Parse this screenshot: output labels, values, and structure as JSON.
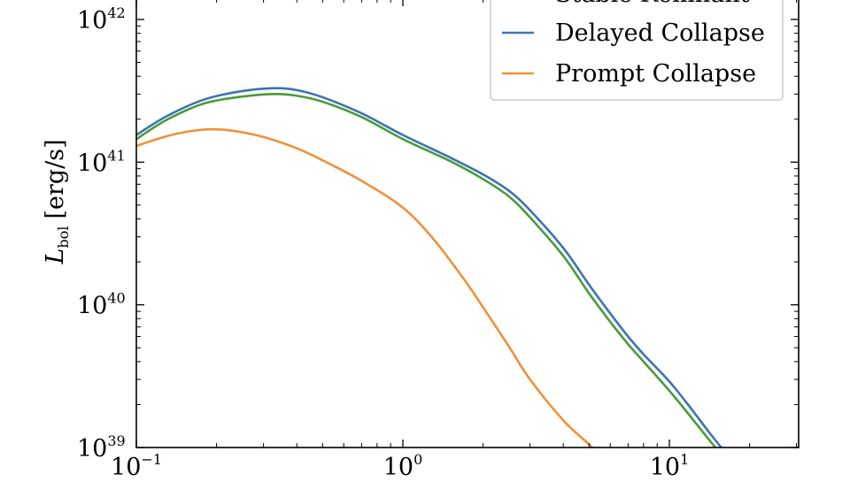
{
  "chart_data": {
    "type": "line",
    "xscale": "log",
    "yscale": "log",
    "xlim": [
      0.1,
      30
    ],
    "ylim": [
      1e+39,
      1e+42
    ],
    "ylabel": {
      "main": "L",
      "sub": "bol",
      "unit": "[erg/s]"
    },
    "xlabel": "",
    "x_ticks": [
      {
        "value": 0.1,
        "base": "10",
        "exp": "−1"
      },
      {
        "value": 1,
        "base": "10",
        "exp": "0"
      },
      {
        "value": 10,
        "base": "10",
        "exp": "1"
      }
    ],
    "y_ticks": [
      {
        "value": 1e+39,
        "base": "10",
        "exp": "39"
      },
      {
        "value": 1e+40,
        "base": "10",
        "exp": "40"
      },
      {
        "value": 1e+41,
        "base": "10",
        "exp": "41"
      },
      {
        "value": 1e+42,
        "base": "10",
        "exp": "42"
      }
    ],
    "legend": {
      "placement": "top-right",
      "partial_entry": "Stable Remnant",
      "entries": [
        {
          "label": "Delayed Collapse",
          "color": "#3d73b3"
        },
        {
          "label": "Prompt Collapse",
          "color": "#f0913a"
        }
      ]
    },
    "series": [
      {
        "name": "Delayed Collapse",
        "color": "#3d73b3",
        "points": [
          [
            0.1,
            1.55e+41
          ],
          [
            0.13,
            2.1e+41
          ],
          [
            0.18,
            2.75e+41
          ],
          [
            0.25,
            3.15e+41
          ],
          [
            0.33,
            3.3e+41
          ],
          [
            0.4,
            3.2e+41
          ],
          [
            0.5,
            2.85e+41
          ],
          [
            0.7,
            2.2e+41
          ],
          [
            1.0,
            1.55e+41
          ],
          [
            1.5,
            1.08e+41
          ],
          [
            2.0,
            8.2e+40
          ],
          [
            2.5,
            6.3e+40
          ],
          [
            3.0,
            4.6e+40
          ],
          [
            4.0,
            2.5e+40
          ],
          [
            5.0,
            1.38e+40
          ],
          [
            6.0,
            8.7e+39
          ],
          [
            7.0,
            6e+39
          ],
          [
            8.0,
            4.5e+39
          ],
          [
            10.0,
            2.9e+39
          ],
          [
            12.0,
            1.9e+39
          ],
          [
            14.0,
            1.3e+39
          ],
          [
            16.0,
            9.5e+38
          ]
        ]
      },
      {
        "name": "",
        "color": "#4a9a3a",
        "points": [
          [
            0.1,
            1.45e+41
          ],
          [
            0.13,
            1.98e+41
          ],
          [
            0.18,
            2.58e+41
          ],
          [
            0.25,
            2.88e+41
          ],
          [
            0.33,
            3e+41
          ],
          [
            0.4,
            2.92e+41
          ],
          [
            0.5,
            2.65e+41
          ],
          [
            0.7,
            2.07e+41
          ],
          [
            1.0,
            1.45e+41
          ],
          [
            1.5,
            1.02e+41
          ],
          [
            2.0,
            7.6e+40
          ],
          [
            2.5,
            5.75e+40
          ],
          [
            3.0,
            4.1e+40
          ],
          [
            4.0,
            2.2e+40
          ],
          [
            5.0,
            1.2e+40
          ],
          [
            6.0,
            7.6e+39
          ],
          [
            7.0,
            5.3e+39
          ],
          [
            8.0,
            4e+39
          ],
          [
            10.0,
            2.5e+39
          ],
          [
            12.0,
            1.65e+39
          ],
          [
            14.0,
            1.15e+39
          ],
          [
            16.0,
            8.5e+38
          ]
        ]
      },
      {
        "name": "Prompt Collapse",
        "color": "#f0913a",
        "points": [
          [
            0.1,
            1.3e+41
          ],
          [
            0.13,
            1.52e+41
          ],
          [
            0.16,
            1.65e+41
          ],
          [
            0.19,
            1.7e+41
          ],
          [
            0.23,
            1.66e+41
          ],
          [
            0.3,
            1.5e+41
          ],
          [
            0.4,
            1.25e+41
          ],
          [
            0.5,
            1.03e+41
          ],
          [
            0.7,
            7.4e+40
          ],
          [
            1.0,
            4.8e+40
          ],
          [
            1.3,
            2.9e+40
          ],
          [
            1.7,
            1.5e+40
          ],
          [
            2.0,
            9.6e+39
          ],
          [
            2.5,
            5.1e+39
          ],
          [
            3.0,
            3e+39
          ],
          [
            4.0,
            1.55e+39
          ],
          [
            5.0,
            1.05e+39
          ],
          [
            5.6,
            8.5e+38
          ]
        ]
      }
    ]
  }
}
